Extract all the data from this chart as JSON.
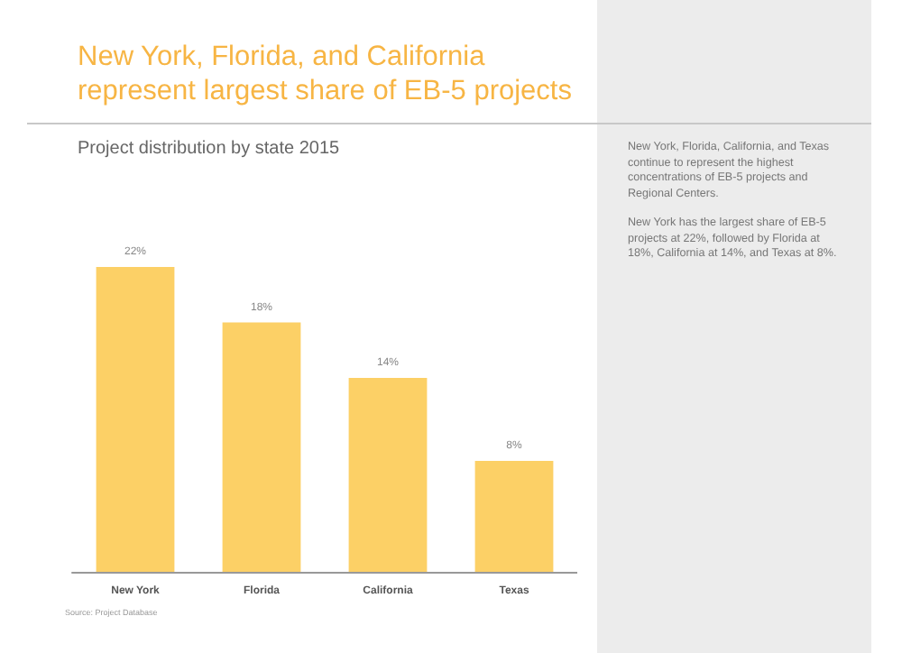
{
  "chart_data": {
    "type": "bar",
    "title": "New York, Florida, and California represent largest share of EB-5 projects",
    "subtitle": "Project distribution by state 2015",
    "categories": [
      "New York",
      "Florida",
      "California",
      "Texas"
    ],
    "values": [
      22,
      18,
      14,
      8
    ],
    "value_labels": [
      "22%",
      "18%",
      "14%",
      "8%"
    ],
    "color": "#fcd066",
    "tick_labels": "x",
    "annotations": [
      "New York, Florida, California, and Texas continue to represent the highest concentrations of EB-5 projects and Regional Centers.",
      "New York has the largest share of EB-5 projects at 22%, followed by Florida at 18%, California at 14%, and Texas at 8%.",
      "Source: Project Database"
    ]
  }
}
